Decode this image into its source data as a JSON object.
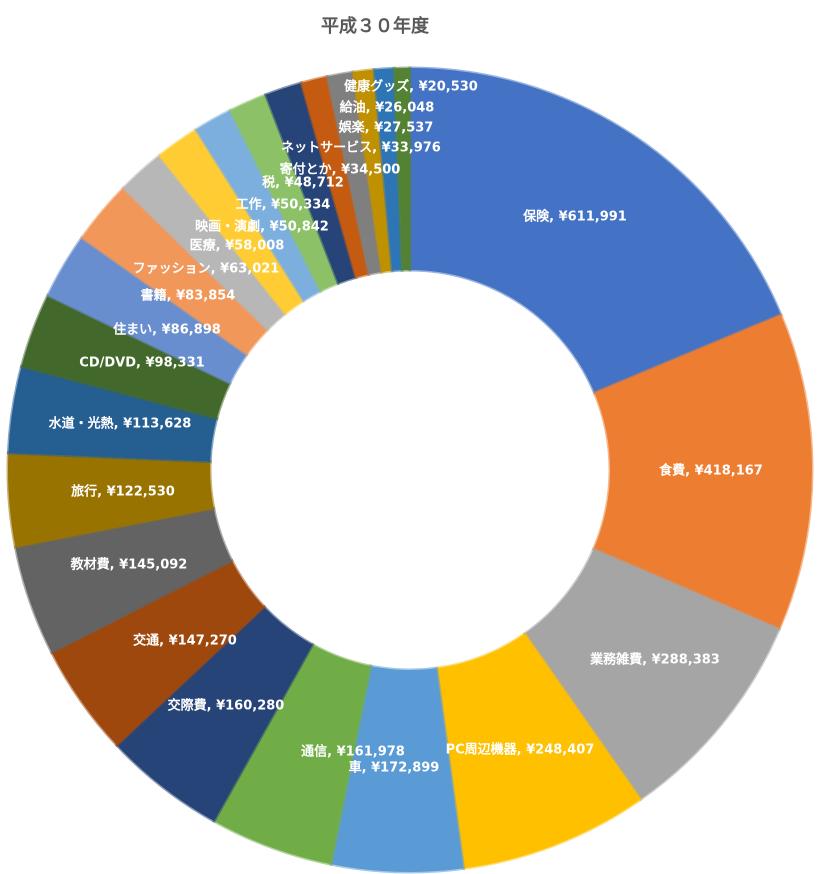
{
  "chart_data": {
    "type": "pie",
    "subtype": "doughnut",
    "title": "平成３０年度",
    "currency_symbol": "¥",
    "series": [
      {
        "label": "保険",
        "value": 611991,
        "text": "保険, ¥611,991",
        "color": "#4472C4"
      },
      {
        "label": "食費",
        "value": 418167,
        "text": "食費, ¥418,167",
        "color": "#ED7D31"
      },
      {
        "label": "業務雑費",
        "value": 288383,
        "text": "業務雑費, ¥288,383",
        "color": "#A5A5A5"
      },
      {
        "label": "PC周辺機器",
        "value": 248407,
        "text": "PC周辺機器, ¥248,407",
        "color": "#FFC000"
      },
      {
        "label": "車",
        "value": 172899,
        "text": "車, ¥172,899",
        "color": "#5B9BD5"
      },
      {
        "label": "通信",
        "value": 161978,
        "text": "通信, ¥161,978",
        "color": "#70AD47"
      },
      {
        "label": "交際費",
        "value": 160280,
        "text": "交際費, ¥160,280",
        "color": "#264478"
      },
      {
        "label": "交通",
        "value": 147270,
        "text": "交通, ¥147,270",
        "color": "#9E480E"
      },
      {
        "label": "教材費",
        "value": 145092,
        "text": "教材費, ¥145,092",
        "color": "#636363"
      },
      {
        "label": "旅行",
        "value": 122530,
        "text": "旅行, ¥122,530",
        "color": "#997300"
      },
      {
        "label": "水道・光熱",
        "value": 113628,
        "text": "水道・光熱, ¥113,628",
        "color": "#255E91"
      },
      {
        "label": "CD/DVD",
        "value": 98331,
        "text": "CD/DVD, ¥98,331",
        "color": "#43682B"
      },
      {
        "label": "住まい",
        "value": 86898,
        "text": "住まい, ¥86,898",
        "color": "#698ED0"
      },
      {
        "label": "書籍",
        "value": 83854,
        "text": "書籍, ¥83,854",
        "color": "#F1975A"
      },
      {
        "label": "ファッション",
        "value": 63021,
        "text": "ファッション, ¥63,021",
        "color": "#B7B7B7"
      },
      {
        "label": "医療",
        "value": 58008,
        "text": "医療, ¥58,008",
        "color": "#FFCD33"
      },
      {
        "label": "映画・演劇",
        "value": 50842,
        "text": "映画・演劇, ¥50,842",
        "color": "#7CAFDD"
      },
      {
        "label": "工作",
        "value": 50334,
        "text": "工作, ¥50,334",
        "color": "#8CC168"
      },
      {
        "label": "税",
        "value": 48712,
        "text": "税, ¥48,712",
        "color": "#264478"
      },
      {
        "label": "寄付とか",
        "value": 34500,
        "text": "寄付とか, ¥34,500",
        "color": "#C55A11"
      },
      {
        "label": "ネットサービス",
        "value": 33976,
        "text": "ネットサービス, ¥33,976",
        "color": "#7F7F7F"
      },
      {
        "label": "娯楽",
        "value": 27537,
        "text": "娯楽, ¥27,537",
        "color": "#BF9000"
      },
      {
        "label": "給油",
        "value": 26048,
        "text": "給油, ¥26,048",
        "color": "#2E75B6"
      },
      {
        "label": "健康グッズ",
        "value": 20530,
        "text": "健康グッズ, ¥20,530",
        "color": "#548235"
      }
    ]
  }
}
